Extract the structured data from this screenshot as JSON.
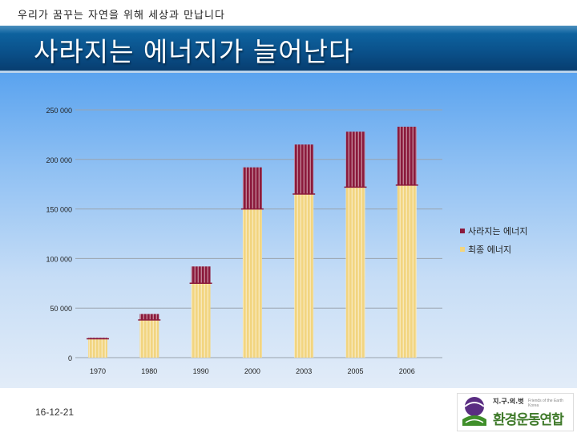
{
  "header": {
    "slogan": "우리가 꿈꾸는 자연을 위해 세상과 만납니다",
    "title": "사라지는 에너지가 늘어난다"
  },
  "footer": {
    "date": "16-12-21",
    "logo_top": "지.구.의.벗",
    "logo_sub": "Friends of the Earth Korea",
    "logo_main": "환경운동연합"
  },
  "colors": {
    "lost": "#8b1a3c",
    "final": "#f2d580",
    "header_blue": "#0a4f88"
  },
  "chart_data": {
    "type": "bar",
    "stacked": true,
    "categories": [
      "1970",
      "1980",
      "1990",
      "2000",
      "2003",
      "2005",
      "2006"
    ],
    "series": [
      {
        "name": "최종 에너지",
        "values": [
          19000,
          38000,
          75000,
          150000,
          165000,
          172000,
          174000
        ]
      },
      {
        "name": "사라지는 에너지",
        "values": [
          1000,
          6000,
          17000,
          42000,
          50000,
          56000,
          59000
        ]
      }
    ],
    "ylim": [
      0,
      250000
    ],
    "yticks": [
      0,
      50000,
      100000,
      150000,
      200000,
      250000
    ],
    "ytick_labels": [
      "0",
      "50 000",
      "100 000",
      "150 000",
      "200 000",
      "250 000"
    ],
    "legend_position": "right",
    "grid": true
  }
}
